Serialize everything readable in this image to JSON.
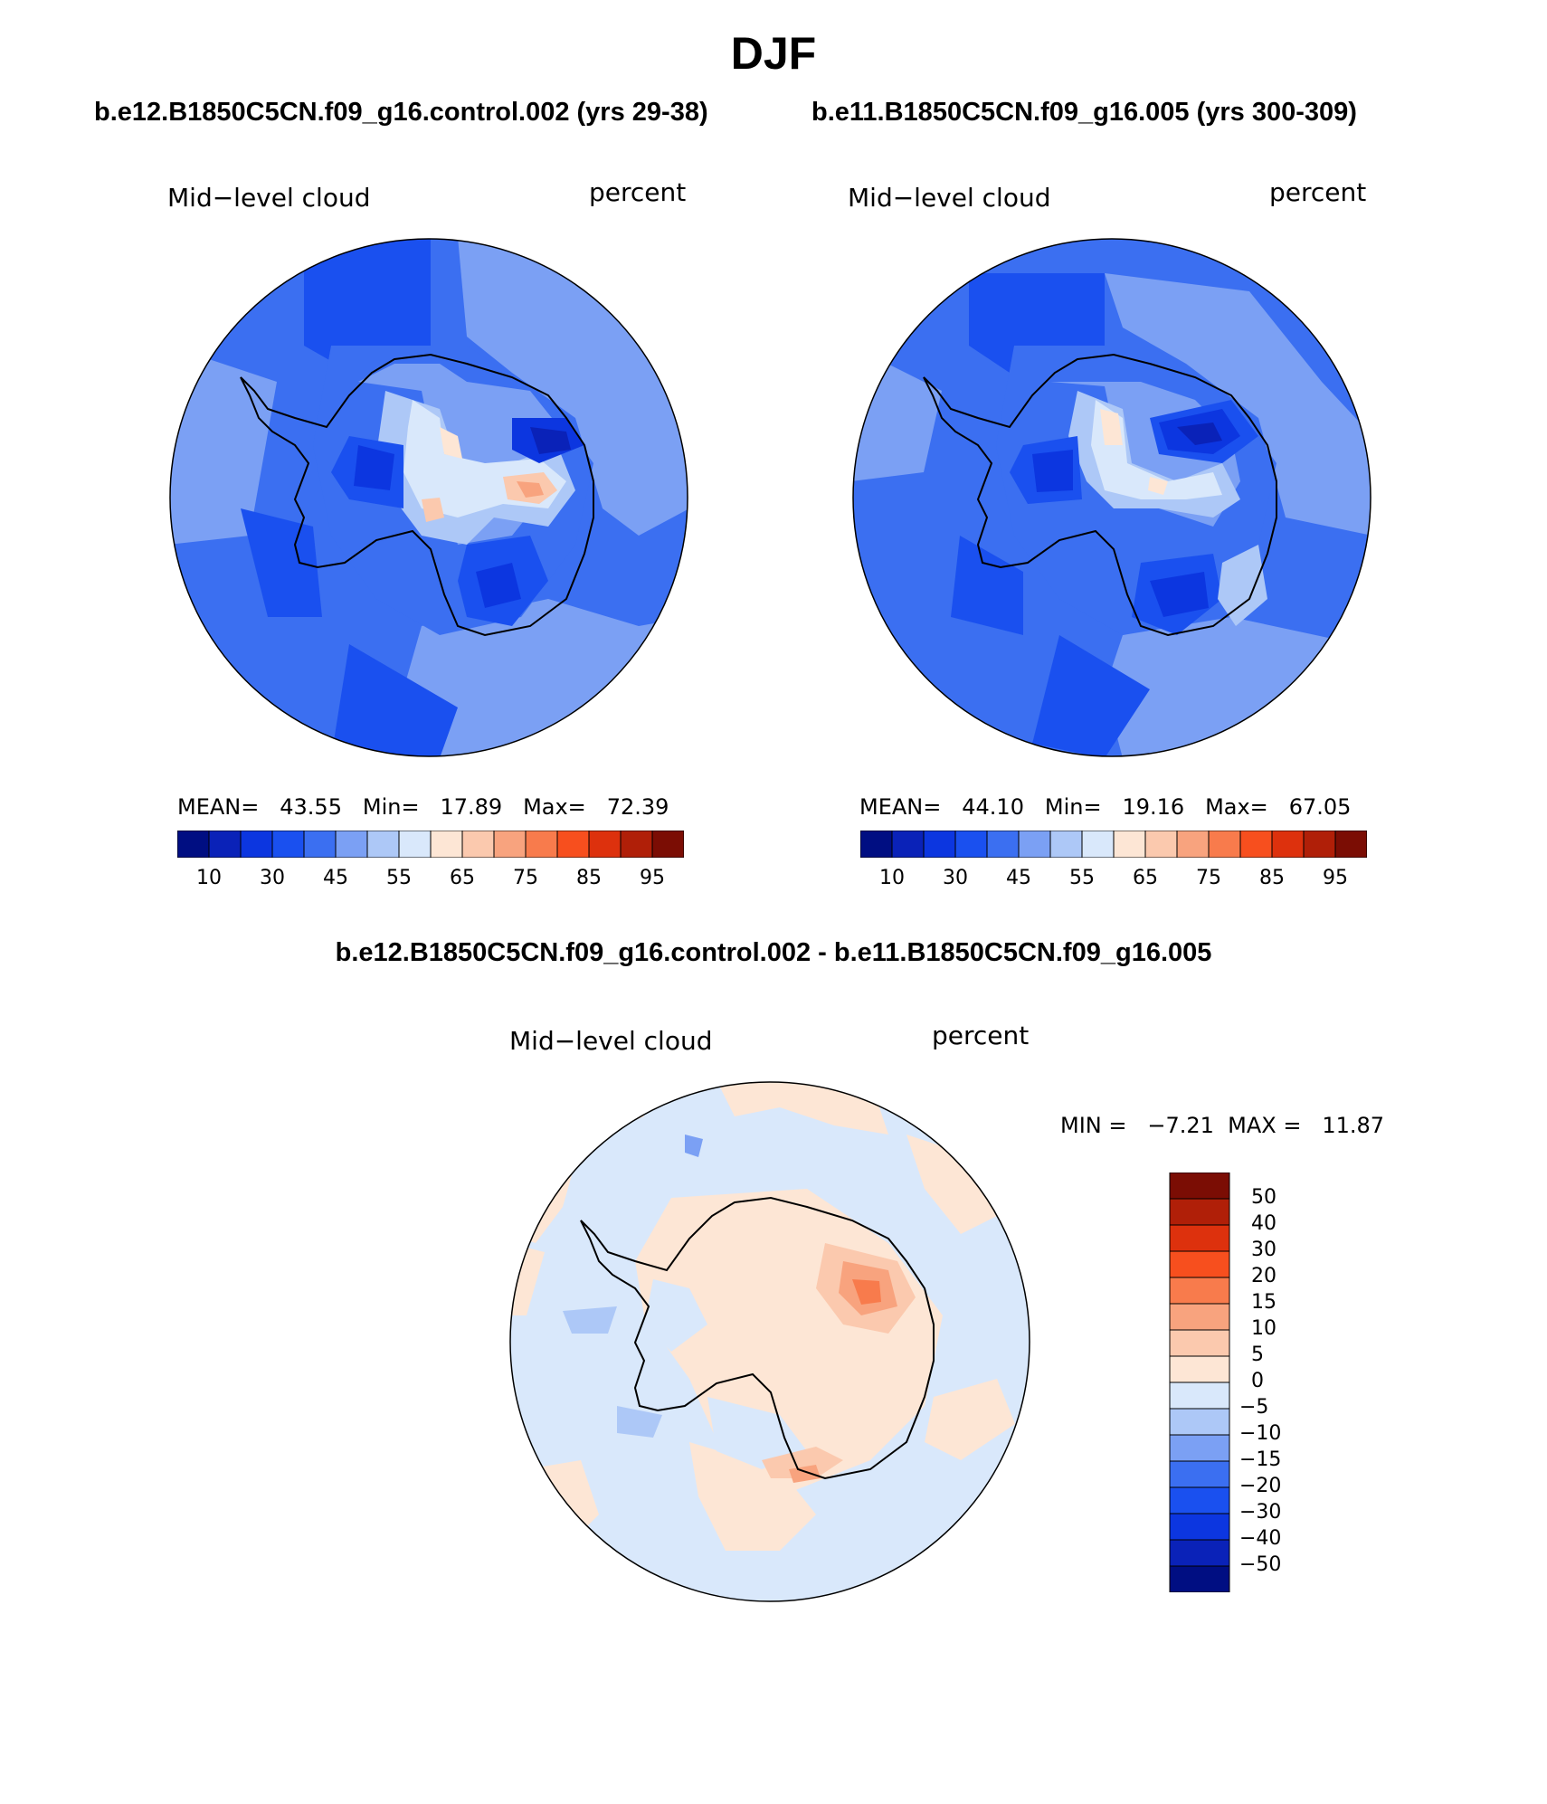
{
  "figure": {
    "season": "DJF",
    "difference_title": "b.e12.B1850C5CN.f09_g16.control.002 - b.e11.B1850C5CN.f09_g16.005"
  },
  "panels": [
    {
      "case_title": "b.e12.B1850C5CN.f09_g16.control.002 (yrs 29-38)",
      "variable": "Mid−level cloud",
      "units": "percent",
      "mean_label": "MEAN=",
      "mean": "43.55",
      "min_label": "Min=",
      "min": "17.89",
      "max_label": "Max=",
      "max": "72.39"
    },
    {
      "case_title": "b.e11.B1850C5CN.f09_g16.005 (yrs 300-309)",
      "variable": "Mid−level cloud",
      "units": "percent",
      "mean_label": "MEAN=",
      "mean": "44.10",
      "min_label": "Min=",
      "min": "19.16",
      "max_label": "Max=",
      "max": "67.05"
    }
  ],
  "diff_panel": {
    "variable": "Mid−level cloud",
    "units": "percent",
    "minmax_text": "MIN =   −7.21  MAX =   11.87"
  },
  "colors": {
    "abs_scale": [
      "#000e82",
      "#0a22b8",
      "#0c36e0",
      "#1a50ef",
      "#3b6ff1",
      "#7ba0f4",
      "#adc8f7",
      "#d9e8fb",
      "#fde6d5",
      "#fbc9ae",
      "#f8a37e",
      "#f87b4c",
      "#f74f1e",
      "#dd310d",
      "#b01f08",
      "#7b0d04"
    ],
    "diff_scale": [
      "#000e82",
      "#0a22b8",
      "#0c36e0",
      "#1a50ef",
      "#3b6ff1",
      "#7ba0f4",
      "#adc8f7",
      "#d9e8fb",
      "#fde6d5",
      "#fbc9ae",
      "#f8a37e",
      "#f87b4c",
      "#f74f1e",
      "#dd310d",
      "#b01f08",
      "#7b0d04"
    ],
    "ocean_control": "#3b6ff1",
    "ocean_diff": "#d9e8fb"
  },
  "chart_data": [
    {
      "type": "heatmap",
      "projection": "south-polar-stereographic",
      "title": "b.e12.B1850C5CN.f09_g16.control.002 (yrs 29-38)",
      "variable": "Mid-level cloud",
      "units": "percent",
      "mean": 43.55,
      "min": 17.89,
      "max": 72.39,
      "colorbar_levels": [
        10,
        20,
        30,
        40,
        45,
        50,
        55,
        60,
        65,
        70,
        75,
        80,
        85,
        90,
        95
      ],
      "colorbar_tick_labels": [
        "10",
        "30",
        "45",
        "55",
        "65",
        "75",
        "85",
        "95"
      ]
    },
    {
      "type": "heatmap",
      "projection": "south-polar-stereographic",
      "title": "b.e11.B1850C5CN.f09_g16.005 (yrs 300-309)",
      "variable": "Mid-level cloud",
      "units": "percent",
      "mean": 44.1,
      "min": 19.16,
      "max": 67.05,
      "colorbar_levels": [
        10,
        20,
        30,
        40,
        45,
        50,
        55,
        60,
        65,
        70,
        75,
        80,
        85,
        90,
        95
      ],
      "colorbar_tick_labels": [
        "10",
        "30",
        "45",
        "55",
        "65",
        "75",
        "85",
        "95"
      ]
    },
    {
      "type": "heatmap",
      "projection": "south-polar-stereographic",
      "title": "b.e12.B1850C5CN.f09_g16.control.002 - b.e11.B1850C5CN.f09_g16.005",
      "variable": "Mid-level cloud",
      "units": "percent",
      "min": -7.21,
      "max": 11.87,
      "colorbar_levels": [
        50,
        40,
        30,
        20,
        15,
        10,
        5,
        0,
        -5,
        -10,
        -15,
        -20,
        -30,
        -40,
        -50
      ],
      "colorbar_tick_labels": [
        "50",
        "40",
        "30",
        "20",
        "15",
        "10",
        "5",
        "0",
        "−5",
        "−10",
        "−15",
        "−20",
        "−30",
        "−40",
        "−50"
      ]
    }
  ]
}
